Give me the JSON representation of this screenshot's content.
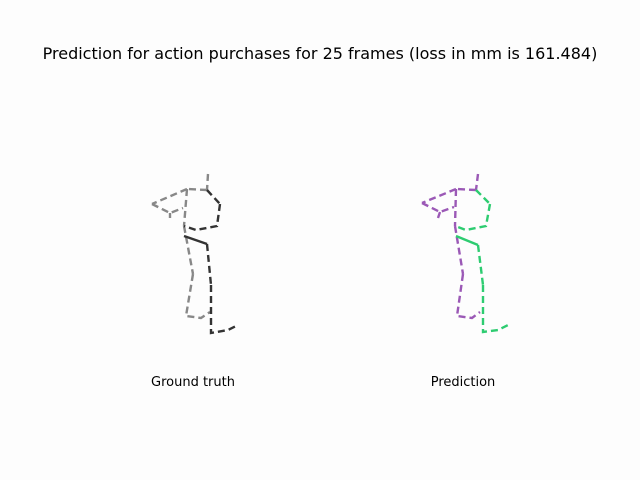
{
  "title": "Prediction for action purchases for 25 frames (loss in mm is 161.484)",
  "panels": [
    {
      "caption": "Ground truth",
      "left_color": "#888888",
      "right_color": "#333333"
    },
    {
      "caption": "Prediction",
      "left_color": "#9b59b6",
      "right_color": "#2ecc71"
    }
  ]
}
